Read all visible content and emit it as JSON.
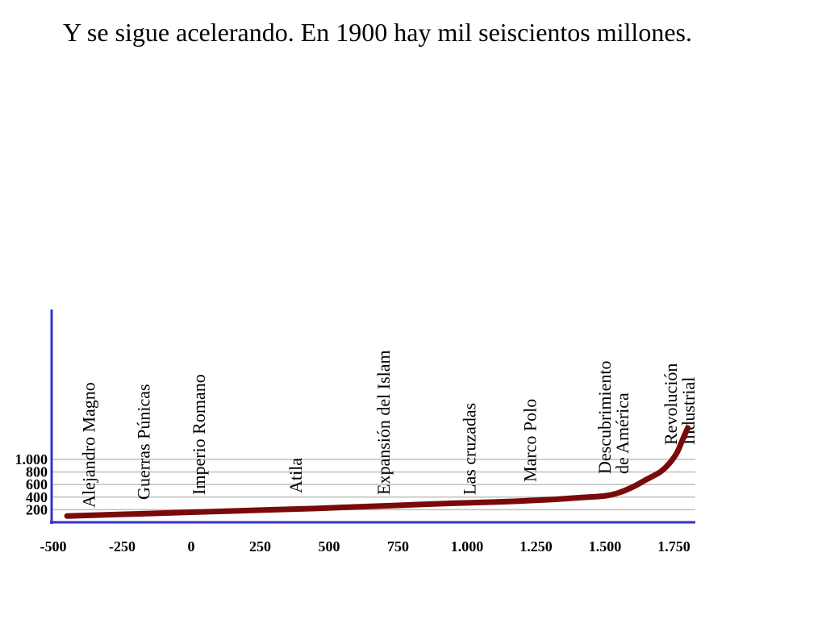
{
  "title": "Y se sigue acelerando. En 1900 hay mil seiscientos millones.",
  "colors": {
    "curve": "#7a0a0a",
    "axis": "#3333cc",
    "grid": "#c0c0c0",
    "text": "#000000"
  },
  "chart_data": {
    "type": "line",
    "title": "Y se sigue acelerando. En 1900 hay mil seiscientos millones.",
    "xlabel": "",
    "ylabel": "",
    "xlim": [
      -500,
      1800
    ],
    "ylim": [
      0,
      1600
    ],
    "grid": "horizontal",
    "x_ticks": [
      -500,
      -250,
      0,
      250,
      500,
      750,
      1000,
      1250,
      1500,
      1750
    ],
    "x_tick_labels": [
      "-500",
      "-250",
      "0",
      "250",
      "500",
      "750",
      "1.000",
      "1.250",
      "1.500",
      "1.750"
    ],
    "y_ticks": [
      200,
      400,
      600,
      800,
      1000
    ],
    "y_tick_labels": [
      "200",
      "400",
      "600",
      "800",
      "1.000"
    ],
    "series": [
      {
        "x": [
          -450,
          -300,
          -150,
          0,
          150,
          300,
          450,
          600,
          750,
          900,
          1000,
          1150,
          1300,
          1400,
          1500,
          1550,
          1600,
          1650,
          1700,
          1730,
          1760,
          1780,
          1800
        ],
        "y": [
          100,
          120,
          140,
          160,
          180,
          200,
          220,
          245,
          270,
          295,
          310,
          330,
          360,
          390,
          420,
          470,
          560,
          680,
          800,
          920,
          1100,
          1300,
          1500
        ]
      }
    ],
    "annotations": [
      {
        "label_lines": [
          "Alejandro Magno"
        ],
        "x": -350
      },
      {
        "label_lines": [
          "Guerras Púnicas"
        ],
        "x": -150
      },
      {
        "label_lines": [
          "Imperio Romano"
        ],
        "x": 50
      },
      {
        "label_lines": [
          "Atila"
        ],
        "x": 400
      },
      {
        "label_lines": [
          "Expansión del Islam"
        ],
        "x": 720
      },
      {
        "label_lines": [
          "Las cruzadas"
        ],
        "x": 1030
      },
      {
        "label_lines": [
          "Marco Polo"
        ],
        "x": 1250
      },
      {
        "label_lines": [
          "Descubrimiento",
          "de América"
        ],
        "x": 1520
      },
      {
        "label_lines": [
          "Revolución",
          "Industrial"
        ],
        "x": 1760
      }
    ]
  }
}
